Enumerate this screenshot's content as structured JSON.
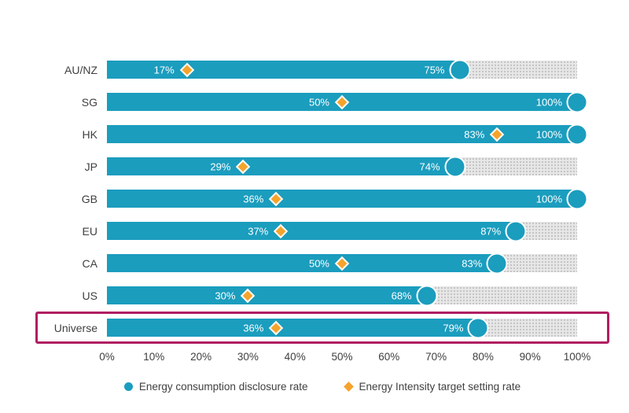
{
  "chart_data": {
    "type": "bar",
    "orientation": "horizontal",
    "title": "",
    "categories": [
      "AU/NZ",
      "SG",
      "HK",
      "JP",
      "GB",
      "EU",
      "CA",
      "US",
      "Universe"
    ],
    "series": [
      {
        "name": "Energy consumption disclosure rate",
        "marker": "circle",
        "color": "#1B9DBE",
        "values": [
          75,
          100,
          100,
          74,
          100,
          87,
          83,
          68,
          79
        ]
      },
      {
        "name": "Energy Intensity target setting rate",
        "marker": "diamond",
        "color": "#F5A32B",
        "values": [
          17,
          50,
          83,
          29,
          36,
          37,
          50,
          30,
          36
        ]
      }
    ],
    "value_suffix": "%",
    "x_ticks": [
      "0%",
      "10%",
      "20%",
      "30%",
      "40%",
      "50%",
      "60%",
      "70%",
      "80%",
      "90%",
      "100%"
    ],
    "xlim": [
      0,
      100
    ],
    "grid": false,
    "legend_position": "bottom",
    "highlighted_category": "Universe",
    "colors": {
      "bar": "#1B9DBE",
      "marker": "#F5A32B",
      "track": "#E3E3E3",
      "highlight_border": "#B01E62",
      "axis_text": "#404040",
      "value_text": "#FFFFFF"
    }
  }
}
